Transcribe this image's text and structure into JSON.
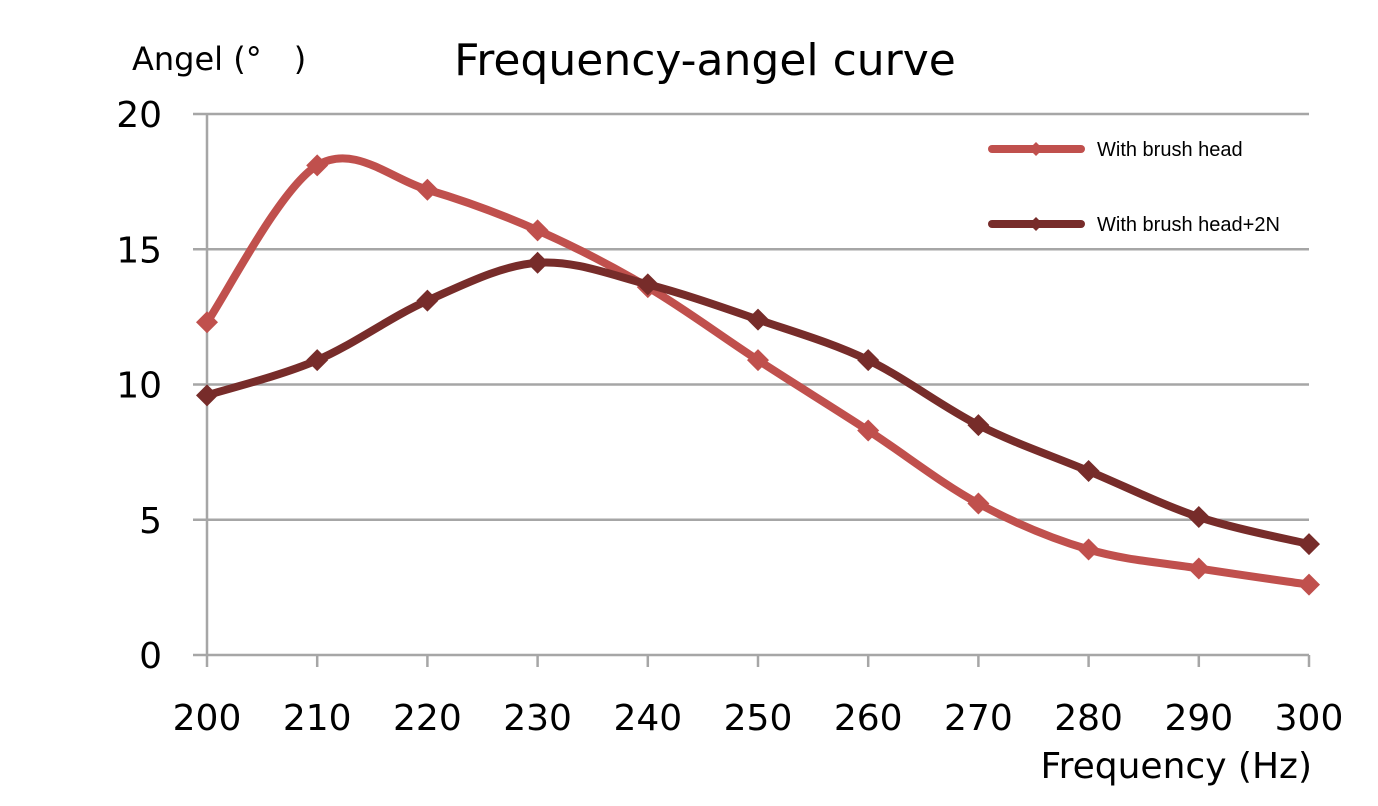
{
  "chart_data": {
    "type": "line",
    "title": "Frequency-angel curve",
    "ylabel": "Angel (°　)",
    "xlabel": "Frequency (Hz)",
    "x": [
      200,
      210,
      220,
      230,
      240,
      250,
      260,
      270,
      280,
      290,
      300
    ],
    "xlim": [
      200,
      300
    ],
    "ylim": [
      0,
      20
    ],
    "yticks": [
      0,
      5,
      10,
      15,
      20
    ],
    "grid": true,
    "legend_position": "top-right",
    "series": [
      {
        "name": "With brush head",
        "color": "#c0504d",
        "values": [
          12.3,
          18.1,
          17.2,
          15.7,
          13.6,
          10.9,
          8.3,
          5.6,
          3.9,
          3.2,
          2.6
        ]
      },
      {
        "name": "With brush head+2N",
        "color": "#772c2a",
        "values": [
          9.6,
          10.9,
          13.1,
          14.5,
          13.7,
          12.4,
          10.9,
          8.5,
          6.8,
          5.1,
          4.1
        ]
      }
    ]
  }
}
